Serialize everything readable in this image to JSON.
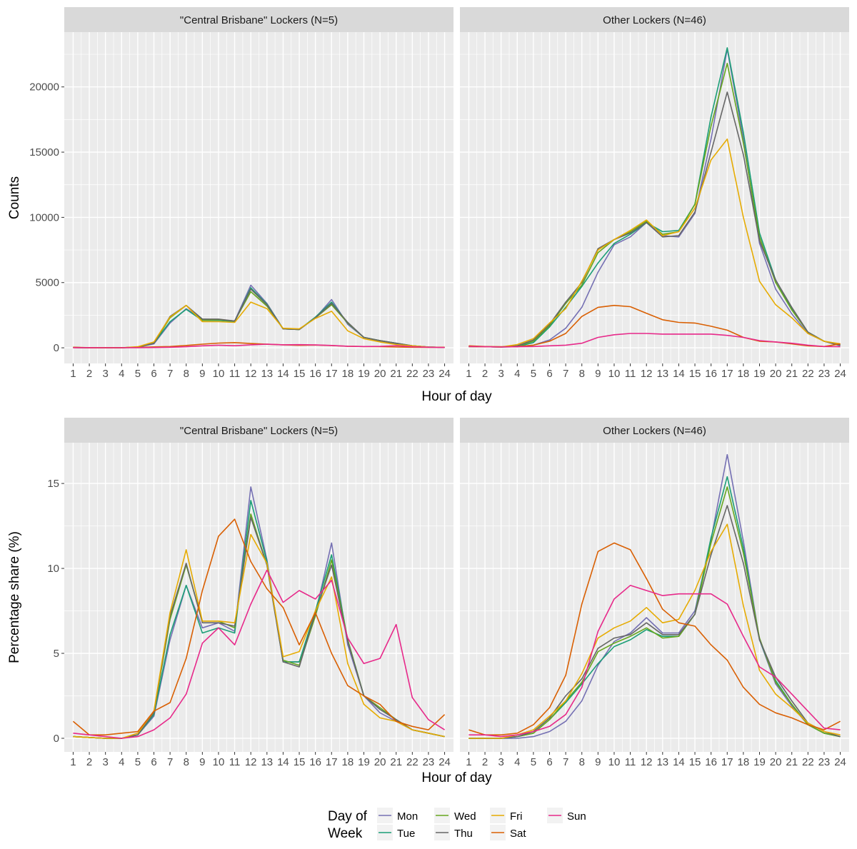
{
  "chart_data": [
    {
      "type": "line",
      "ylabel": "Counts",
      "xlabel": "Hour of day",
      "x": [
        1,
        2,
        3,
        4,
        5,
        6,
        7,
        8,
        9,
        10,
        11,
        12,
        13,
        14,
        15,
        16,
        17,
        18,
        19,
        20,
        21,
        22,
        23,
        24
      ],
      "yticks": [
        0,
        5000,
        10000,
        15000,
        20000
      ],
      "ylim": [
        -1200,
        24200
      ],
      "panels": [
        {
          "strip": "\"Central Brisbane\" Lockers (N=5)",
          "series": [
            {
              "name": "Mon",
              "values": [
                20,
                10,
                5,
                5,
                50,
                300,
                1900,
                3000,
                2200,
                2150,
                2050,
                4800,
                3400,
                1450,
                1400,
                2300,
                3700,
                1800,
                800,
                500,
                300,
                150,
                60,
                30
              ]
            },
            {
              "name": "Tue",
              "values": [
                20,
                10,
                5,
                5,
                60,
                350,
                2000,
                2950,
                2100,
                2100,
                2000,
                4600,
                3350,
                1450,
                1400,
                2350,
                3500,
                1900,
                800,
                550,
                350,
                150,
                60,
                30
              ]
            },
            {
              "name": "Wed",
              "values": [
                20,
                10,
                5,
                5,
                60,
                350,
                2300,
                3250,
                2100,
                2150,
                2050,
                4300,
                3200,
                1450,
                1400,
                2300,
                3300,
                1900,
                800,
                550,
                350,
                150,
                60,
                30
              ]
            },
            {
              "name": "Thu",
              "values": [
                20,
                10,
                5,
                5,
                60,
                350,
                2400,
                3250,
                2200,
                2200,
                2050,
                4500,
                3300,
                1450,
                1400,
                2300,
                3400,
                1950,
                800,
                550,
                350,
                150,
                60,
                30
              ]
            },
            {
              "name": "Fri",
              "values": [
                20,
                10,
                5,
                5,
                80,
                450,
                2350,
                3250,
                2000,
                2000,
                1950,
                3500,
                3000,
                1500,
                1450,
                2250,
                2800,
                1300,
                700,
                450,
                250,
                150,
                60,
                30
              ]
            },
            {
              "name": "Sat",
              "values": [
                40,
                10,
                10,
                10,
                30,
                70,
                100,
                180,
                280,
                360,
                400,
                330,
                270,
                230,
                190,
                210,
                170,
                120,
                100,
                90,
                60,
                40,
                30,
                40
              ]
            },
            {
              "name": "Sun",
              "values": [
                10,
                10,
                5,
                5,
                10,
                20,
                40,
                80,
                150,
                200,
                160,
                230,
                280,
                230,
                240,
                220,
                180,
                120,
                100,
                110,
                160,
                80,
                40,
                20
              ]
            }
          ]
        },
        {
          "strip": "Other Lockers (N=46)",
          "series": [
            {
              "name": "Mon",
              "values": [
                100,
                80,
                60,
                80,
                200,
                600,
                1500,
                3100,
                5800,
                7900,
                8500,
                9600,
                8600,
                8500,
                10300,
                16000,
                22900,
                16000,
                8000,
                4500,
                2600,
                1100,
                500,
                150
              ]
            },
            {
              "name": "Tue",
              "values": [
                100,
                80,
                60,
                100,
                400,
                1600,
                3100,
                4700,
                6500,
                8000,
                8700,
                9600,
                8900,
                9000,
                11000,
                17700,
                23000,
                16500,
                8800,
                5200,
                3000,
                1200,
                500,
                200
              ]
            },
            {
              "name": "Wed",
              "values": [
                100,
                80,
                60,
                150,
                500,
                1700,
                3400,
                4800,
                7300,
                8300,
                8900,
                9700,
                8700,
                8900,
                11000,
                17000,
                21800,
                15700,
                8500,
                5000,
                2900,
                1200,
                500,
                200
              ]
            },
            {
              "name": "Thu",
              "values": [
                100,
                80,
                60,
                150,
                600,
                1800,
                3500,
                5000,
                7600,
                8300,
                8800,
                9600,
                8500,
                8600,
                10400,
                15000,
                19600,
                14800,
                8200,
                5200,
                3100,
                1200,
                500,
                200
              ]
            },
            {
              "name": "Fri",
              "values": [
                100,
                80,
                60,
                250,
                700,
                1900,
                3000,
                5100,
                7500,
                8300,
                9000,
                9800,
                8600,
                8900,
                10700,
                14400,
                16000,
                10000,
                5100,
                3300,
                2300,
                1100,
                500,
                300
              ]
            },
            {
              "name": "Sat",
              "values": [
                150,
                100,
                80,
                100,
                200,
                500,
                1100,
                2400,
                3100,
                3250,
                3150,
                2650,
                2150,
                1950,
                1900,
                1650,
                1350,
                800,
                500,
                450,
                300,
                150,
                100,
                300
              ]
            },
            {
              "name": "Sun",
              "values": [
                100,
                80,
                60,
                80,
                100,
                150,
                200,
                350,
                800,
                1000,
                1100,
                1100,
                1050,
                1050,
                1050,
                1050,
                950,
                800,
                550,
                450,
                350,
                200,
                100,
                80
              ]
            }
          ]
        }
      ]
    },
    {
      "type": "line",
      "ylabel": "Percentage share (%)",
      "xlabel": "Hour of day",
      "x": [
        1,
        2,
        3,
        4,
        5,
        6,
        7,
        8,
        9,
        10,
        11,
        12,
        13,
        14,
        15,
        16,
        17,
        18,
        19,
        20,
        21,
        22,
        23,
        24
      ],
      "yticks": [
        0,
        5,
        10,
        15
      ],
      "ylim": [
        -0.8,
        17.4
      ],
      "panels": [
        {
          "strip": "\"Central Brisbane\" Lockers (N=5)",
          "series": [
            {
              "name": "Mon",
              "values": [
                0.1,
                0.05,
                0,
                0,
                0.2,
                1.3,
                5.8,
                9.0,
                6.5,
                6.8,
                6.3,
                14.8,
                10.5,
                4.5,
                4.5,
                7.3,
                11.5,
                5.5,
                2.5,
                1.5,
                1.0,
                0.5,
                0.3,
                0.1
              ]
            },
            {
              "name": "Tue",
              "values": [
                0.1,
                0.05,
                0,
                0,
                0.2,
                1.4,
                6.1,
                9.0,
                6.2,
                6.5,
                6.2,
                14.0,
                10.4,
                4.5,
                4.5,
                7.5,
                10.8,
                5.8,
                2.5,
                1.7,
                1.1,
                0.5,
                0.3,
                0.1
              ]
            },
            {
              "name": "Wed",
              "values": [
                0.1,
                0.05,
                0,
                0,
                0.2,
                1.5,
                7.0,
                10.2,
                6.9,
                6.9,
                6.5,
                13.2,
                10.2,
                4.6,
                4.3,
                7.2,
                10.5,
                5.8,
                2.5,
                1.8,
                1.1,
                0.5,
                0.3,
                0.1
              ]
            },
            {
              "name": "Thu",
              "values": [
                0.1,
                0.05,
                0,
                0,
                0.2,
                1.5,
                7.2,
                10.3,
                6.8,
                6.8,
                6.6,
                13.0,
                10.2,
                4.5,
                4.2,
                7.4,
                10.2,
                5.7,
                2.5,
                1.7,
                1.1,
                0.5,
                0.3,
                0.1
              ]
            },
            {
              "name": "Fri",
              "values": [
                0.1,
                0.05,
                0,
                0,
                0.3,
                1.6,
                7.4,
                11.1,
                6.9,
                6.9,
                6.8,
                12.0,
                10.3,
                4.8,
                5.1,
                7.5,
                9.5,
                4.4,
                2.0,
                1.2,
                1.0,
                0.5,
                0.3,
                0.1
              ]
            },
            {
              "name": "Sat",
              "values": [
                1.0,
                0.2,
                0.2,
                0.3,
                0.4,
                1.6,
                2.1,
                4.7,
                8.7,
                11.9,
                12.9,
                10.4,
                8.8,
                7.7,
                5.5,
                7.4,
                5.0,
                3.1,
                2.5,
                2.0,
                1.0,
                0.7,
                0.5,
                1.4
              ]
            },
            {
              "name": "Sun",
              "values": [
                0.3,
                0.2,
                0.1,
                0,
                0.1,
                0.5,
                1.2,
                2.6,
                5.6,
                6.5,
                5.5,
                7.9,
                9.9,
                8.0,
                8.7,
                8.2,
                9.3,
                5.9,
                4.4,
                4.7,
                6.7,
                2.4,
                1.1,
                0.5
              ]
            }
          ]
        },
        {
          "strip": "Other Lockers (N=46)",
          "series": [
            {
              "name": "Mon",
              "values": [
                0,
                0,
                0,
                0,
                0.1,
                0.4,
                1.0,
                2.2,
                4.3,
                5.7,
                6.2,
                7.1,
                6.2,
                6.2,
                7.5,
                11.7,
                16.7,
                11.6,
                5.8,
                3.2,
                1.9,
                0.8,
                0.3,
                0.1
              ]
            },
            {
              "name": "Tue",
              "values": [
                0,
                0,
                0,
                0.1,
                0.3,
                1.1,
                2.1,
                3.2,
                4.4,
                5.4,
                5.8,
                6.4,
                6.0,
                6.0,
                7.3,
                11.8,
                15.4,
                11.2,
                5.8,
                3.4,
                2.0,
                0.8,
                0.3,
                0.1
              ]
            },
            {
              "name": "Wed",
              "values": [
                0,
                0,
                0,
                0.1,
                0.3,
                1.1,
                2.2,
                3.3,
                5.1,
                5.6,
                6.0,
                6.5,
                5.9,
                6.0,
                7.3,
                11.5,
                14.8,
                10.9,
                5.9,
                3.3,
                2.0,
                0.8,
                0.3,
                0.1
              ]
            },
            {
              "name": "Thu",
              "values": [
                0,
                0,
                0,
                0.1,
                0.4,
                1.2,
                2.5,
                3.5,
                5.3,
                5.9,
                6.1,
                6.8,
                6.1,
                6.1,
                7.3,
                10.8,
                13.7,
                10.3,
                5.8,
                3.6,
                2.2,
                0.9,
                0.4,
                0.1
              ]
            },
            {
              "name": "Fri",
              "values": [
                0,
                0,
                0,
                0.2,
                0.5,
                1.3,
                2.2,
                3.8,
                5.9,
                6.5,
                6.9,
                7.7,
                6.8,
                7.0,
                8.7,
                11.0,
                12.6,
                7.8,
                4.0,
                2.6,
                1.8,
                0.9,
                0.4,
                0.2
              ]
            },
            {
              "name": "Sat",
              "values": [
                0.5,
                0.2,
                0.2,
                0.3,
                0.8,
                1.8,
                3.7,
                7.9,
                11.0,
                11.5,
                11.1,
                9.4,
                7.6,
                6.8,
                6.6,
                5.5,
                4.6,
                3.0,
                2.0,
                1.5,
                1.2,
                0.8,
                0.5,
                1.0
              ]
            },
            {
              "name": "Sun",
              "values": [
                0.2,
                0.2,
                0.1,
                0.2,
                0.4,
                0.7,
                1.4,
                3.0,
                6.3,
                8.2,
                9.0,
                8.7,
                8.4,
                8.5,
                8.5,
                8.5,
                7.9,
                6.0,
                4.2,
                3.6,
                2.6,
                1.6,
                0.6,
                0.5
              ]
            }
          ]
        }
      ]
    }
  ],
  "legend": {
    "title_line1": "Day of",
    "title_line2": "Week",
    "placement": "bottom",
    "items": [
      {
        "name": "Mon",
        "color": "#7570B3"
      },
      {
        "name": "Tue",
        "color": "#1B9E77"
      },
      {
        "name": "Wed",
        "color": "#66A61E"
      },
      {
        "name": "Thu",
        "color": "#666666"
      },
      {
        "name": "Fri",
        "color": "#E6AB02"
      },
      {
        "name": "Sat",
        "color": "#D95F02"
      },
      {
        "name": "Sun",
        "color": "#E7298A"
      }
    ]
  },
  "style": {
    "panel_bg": "#EBEBEB",
    "strip_bg": "#D9D9D9",
    "grid_color": "#FFFFFF"
  }
}
